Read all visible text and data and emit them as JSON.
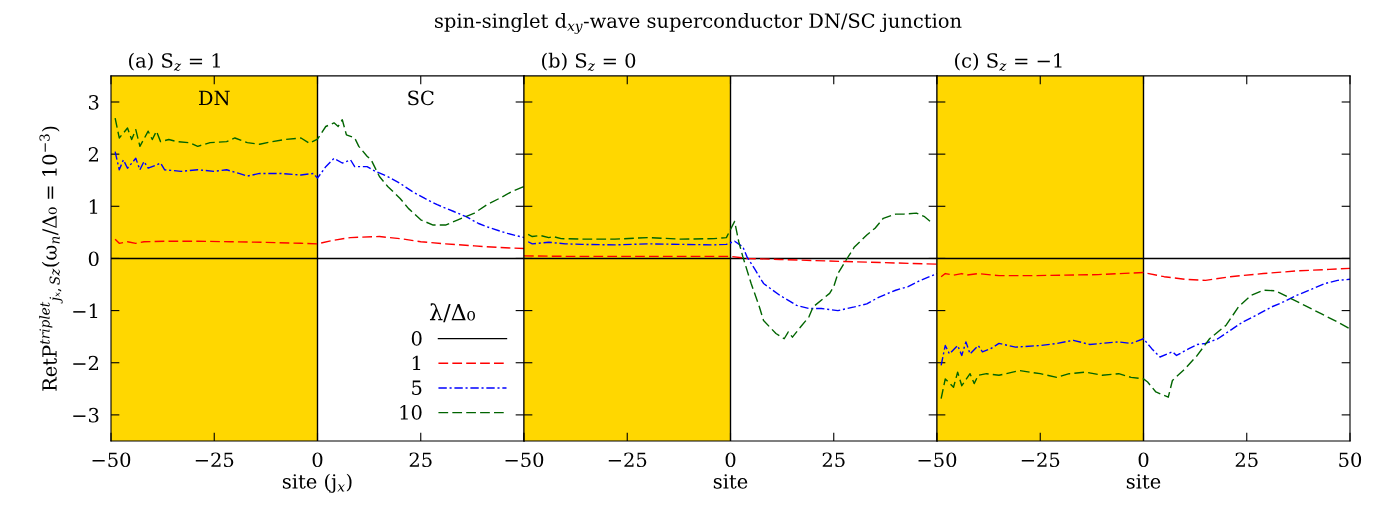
{
  "chart_data": [
    {
      "type": "line",
      "title": "spin-singlet d$_{xy}$-wave superconductor DN/SC junction",
      "subtitle": "(a) S$_{z}$ = 1",
      "xlabel": "site (j$_{x}$)",
      "ylabel": "RetP$^{triplet}$$_{jₓ,Sz}$(ω$_{n}$/Δ₀ = 10$^{−3}$)",
      "xlim": [
        -50,
        50
      ],
      "xticks": [
        -50,
        -25,
        0,
        25,
        {
          "value": 50,
          "label": null
        }
      ],
      "ylim": [
        -3.5,
        3.5
      ],
      "yticks": [
        -3,
        -2,
        -1,
        0,
        1,
        2,
        3
      ],
      "grid": false,
      "legend": "bottom right",
      "legend_title": "λ/Δ₀",
      "bands": [
        {
          "axis": "x",
          "from": -50,
          "to": 0,
          "label": "DN",
          "color": "#ffd700"
        }
      ],
      "annotations": [
        "SC"
      ],
      "ref_lines": [
        {
          "axis": "x",
          "value": 0,
          "color": "#000000"
        }
      ],
      "series": [
        {
          "name": "0",
          "color": "#000000",
          "line_style": "solid",
          "x": [
            -50,
            50
          ],
          "values": [
            0,
            0
          ]
        },
        {
          "name": "1",
          "color": "#ff0000",
          "line_style": "dashed",
          "x": [
            -49,
            -48,
            -46,
            -44,
            -42,
            -37,
            -29,
            -21,
            -13,
            -4,
            0,
            4,
            8,
            15,
            20,
            25,
            31,
            38,
            44,
            50
          ],
          "values": [
            0.37,
            0.29,
            0.32,
            0.29,
            0.32,
            0.33,
            0.33,
            0.32,
            0.31,
            0.29,
            0.28,
            0.35,
            0.4,
            0.42,
            0.38,
            0.32,
            0.28,
            0.24,
            0.21,
            0.19
          ]
        },
        {
          "name": "5",
          "color": "#0000ff",
          "line_style": "dashdot",
          "x": [
            -49,
            -48,
            -47,
            -46,
            -44,
            -43,
            -42,
            -41,
            -39,
            -38,
            -37,
            -33,
            -29,
            -25,
            -22,
            -19,
            -17,
            -14,
            -9,
            -4,
            -1,
            0,
            2,
            4,
            6,
            8,
            9,
            12,
            14,
            17,
            20,
            23,
            26,
            29,
            33,
            36,
            39,
            42,
            46,
            49,
            50
          ],
          "values": [
            2.05,
            1.7,
            1.89,
            1.73,
            1.92,
            1.7,
            1.86,
            1.73,
            1.79,
            1.83,
            1.7,
            1.67,
            1.7,
            1.67,
            1.7,
            1.63,
            1.58,
            1.63,
            1.63,
            1.6,
            1.63,
            1.54,
            1.76,
            1.92,
            1.83,
            1.89,
            1.76,
            1.76,
            1.67,
            1.57,
            1.44,
            1.28,
            1.15,
            1.03,
            0.9,
            0.8,
            0.67,
            0.58,
            0.48,
            0.42,
            0.4
          ]
        },
        {
          "name": "10",
          "color": "#006400",
          "line_style": "dashed",
          "x": [
            -49,
            -48,
            -46,
            -45,
            -44,
            -43,
            -41,
            -40,
            -39,
            -38,
            -36,
            -34,
            -31,
            -29,
            -26,
            -22,
            -20,
            -17,
            -14,
            -11,
            -8,
            -4,
            -2,
            0,
            2,
            4,
            5,
            6,
            7,
            9,
            10,
            12,
            13,
            15,
            17,
            20,
            22,
            25,
            28,
            31,
            34,
            38,
            41,
            44,
            47,
            50
          ],
          "values": [
            2.69,
            2.31,
            2.5,
            2.28,
            2.47,
            2.15,
            2.44,
            2.28,
            2.44,
            2.24,
            2.28,
            2.24,
            2.22,
            2.15,
            2.22,
            2.24,
            2.31,
            2.22,
            2.19,
            2.24,
            2.28,
            2.31,
            2.21,
            2.29,
            2.53,
            2.6,
            2.53,
            2.66,
            2.37,
            2.31,
            2.15,
            1.96,
            1.89,
            1.57,
            1.38,
            1.15,
            0.96,
            0.74,
            0.64,
            0.64,
            0.74,
            0.87,
            1.03,
            1.15,
            1.28,
            1.38
          ]
        }
      ]
    },
    {
      "type": "line",
      "subtitle": "(b) S$_{z}$ = 0",
      "xlabel": "site",
      "xlim": [
        -50,
        50
      ],
      "xticks": [
        -50,
        -25,
        0,
        25,
        {
          "value": 50,
          "label": null
        }
      ],
      "ylim": [
        -3.5,
        3.5
      ],
      "yticks": [
        {
          "value": -3,
          "label": null
        },
        {
          "value": -2,
          "label": null
        },
        {
          "value": -1,
          "label": null
        },
        {
          "value": 0,
          "label": null
        },
        {
          "value": 1,
          "label": null
        },
        {
          "value": 2,
          "label": null
        },
        {
          "value": 3,
          "label": null
        }
      ],
      "grid": false,
      "tick_labels": "x",
      "bands": [
        {
          "axis": "x",
          "from": -50,
          "to": 0,
          "color": "#ffd700"
        }
      ],
      "ref_lines": [
        {
          "axis": "x",
          "value": 0,
          "color": "#000000"
        }
      ],
      "series": [
        {
          "color": "#000000",
          "line_style": "solid",
          "x": [
            -50,
            50
          ],
          "values": [
            0,
            0
          ]
        },
        {
          "color": "#ff0000",
          "line_style": "dashed",
          "x": [
            -50,
            -40,
            -20,
            0,
            4,
            12,
            20,
            28,
            37,
            50
          ],
          "values": [
            0.05,
            0.04,
            0.04,
            0.04,
            0,
            -0.02,
            -0.04,
            -0.06,
            -0.08,
            -0.11
          ]
        },
        {
          "color": "#0000ff",
          "line_style": "dashdot",
          "x": [
            -49,
            -48,
            -44,
            -40,
            -36,
            -28,
            -20,
            -12,
            -4,
            -1,
            1,
            3,
            4,
            6,
            8,
            12,
            16,
            19,
            22,
            26,
            30,
            33,
            36,
            40,
            43,
            46,
            50
          ],
          "values": [
            0.32,
            0.28,
            0.31,
            0.28,
            0.27,
            0.26,
            0.28,
            0.27,
            0.26,
            0.27,
            0.33,
            0.22,
            0.03,
            -0.22,
            -0.48,
            -0.71,
            -0.9,
            -0.96,
            -0.96,
            -1.0,
            -0.93,
            -0.87,
            -0.74,
            -0.61,
            -0.54,
            -0.42,
            -0.29
          ]
        },
        {
          "color": "#006400",
          "line_style": "dashed",
          "x": [
            -49,
            -48,
            -46,
            -44,
            -43,
            -41,
            -36,
            -28,
            -20,
            -12,
            -4,
            -1,
            1,
            2,
            3,
            5,
            7,
            8,
            11,
            13,
            14,
            15,
            17,
            19,
            20,
            24,
            25,
            26,
            28,
            30,
            33,
            35,
            37,
            40,
            42,
            45,
            47,
            49
          ],
          "values": [
            0.46,
            0.42,
            0.44,
            0.4,
            0.42,
            0.38,
            0.37,
            0.37,
            0.4,
            0.37,
            0.38,
            0.4,
            0.71,
            0.32,
            0.03,
            -0.48,
            -0.93,
            -1.19,
            -1.44,
            -1.54,
            -1.41,
            -1.51,
            -1.31,
            -1.12,
            -0.93,
            -0.67,
            -0.54,
            -0.29,
            -0.03,
            0.22,
            0.45,
            0.58,
            0.77,
            0.85,
            0.85,
            0.87,
            0.8,
            0.67
          ]
        }
      ]
    },
    {
      "type": "line",
      "subtitle": "(c) S$_{z}$ = −1",
      "xlabel": "site",
      "xlim": [
        -50,
        50
      ],
      "xticks": [
        -50,
        -25,
        0,
        25,
        50
      ],
      "ylim": [
        -3.5,
        3.5
      ],
      "yticks": [
        {
          "value": -3,
          "label": null
        },
        {
          "value": -2,
          "label": null
        },
        {
          "value": -1,
          "label": null
        },
        {
          "value": 0,
          "label": null
        },
        {
          "value": 1,
          "label": null
        },
        {
          "value": 2,
          "label": null
        },
        {
          "value": 3,
          "label": null
        }
      ],
      "grid": false,
      "tick_labels": "x",
      "bands": [
        {
          "axis": "x",
          "from": -50,
          "to": 0,
          "color": "#ffd700"
        }
      ],
      "ref_lines": [
        {
          "axis": "x",
          "value": 0,
          "color": "#000000"
        }
      ],
      "series": [
        {
          "color": "#000000",
          "line_style": "solid",
          "x": [
            -50,
            50
          ],
          "values": [
            0,
            0
          ]
        },
        {
          "color": "#ff0000",
          "line_style": "dashed",
          "x": [
            -49,
            -48,
            -46,
            -44,
            -43,
            -40,
            -35,
            -27,
            -19,
            -11,
            -3,
            0,
            5,
            10,
            15,
            21,
            29,
            37,
            45,
            50
          ],
          "values": [
            -0.35,
            -0.29,
            -0.32,
            -0.29,
            -0.32,
            -0.29,
            -0.33,
            -0.33,
            -0.32,
            -0.31,
            -0.28,
            -0.27,
            -0.35,
            -0.4,
            -0.42,
            -0.35,
            -0.29,
            -0.24,
            -0.21,
            -0.19
          ]
        },
        {
          "color": "#0000ff",
          "line_style": "dashdot",
          "x": [
            -49,
            -48,
            -47,
            -45,
            -44,
            -43,
            -42,
            -40,
            -39,
            -37,
            -35,
            -31,
            -25,
            -21,
            -17,
            -13,
            -6,
            -3,
            0,
            2,
            4,
            7,
            8,
            11,
            13,
            15,
            18,
            21,
            24,
            28,
            31,
            34,
            37,
            41,
            44,
            47,
            50
          ],
          "values": [
            -2.05,
            -1.67,
            -1.83,
            -1.67,
            -1.86,
            -1.6,
            -1.83,
            -1.67,
            -1.79,
            -1.73,
            -1.63,
            -1.7,
            -1.67,
            -1.63,
            -1.57,
            -1.65,
            -1.6,
            -1.63,
            -1.54,
            -1.73,
            -1.89,
            -1.79,
            -1.86,
            -1.73,
            -1.65,
            -1.63,
            -1.54,
            -1.38,
            -1.22,
            -1.06,
            -0.93,
            -0.83,
            -0.71,
            -0.58,
            -0.48,
            -0.42,
            -0.4
          ]
        },
        {
          "color": "#006400",
          "line_style": "dashed",
          "x": [
            -49,
            -48,
            -46,
            -45,
            -44,
            -42,
            -41,
            -40,
            -38,
            -35,
            -30,
            -25,
            -21,
            -18,
            -14,
            -10,
            -6,
            -3,
            0,
            1,
            3,
            6,
            7,
            10,
            13,
            16,
            20,
            23,
            26,
            29,
            32,
            35,
            39,
            43,
            47,
            50
          ],
          "values": [
            -2.69,
            -2.31,
            -2.47,
            -2.18,
            -2.44,
            -2.21,
            -2.4,
            -2.24,
            -2.21,
            -2.24,
            -2.15,
            -2.21,
            -2.28,
            -2.21,
            -2.18,
            -2.24,
            -2.21,
            -2.28,
            -2.31,
            -2.37,
            -2.56,
            -2.66,
            -2.34,
            -2.12,
            -1.86,
            -1.54,
            -1.28,
            -0.93,
            -0.71,
            -0.61,
            -0.62,
            -0.74,
            -0.9,
            -1.06,
            -1.22,
            -1.35
          ]
        }
      ]
    }
  ]
}
